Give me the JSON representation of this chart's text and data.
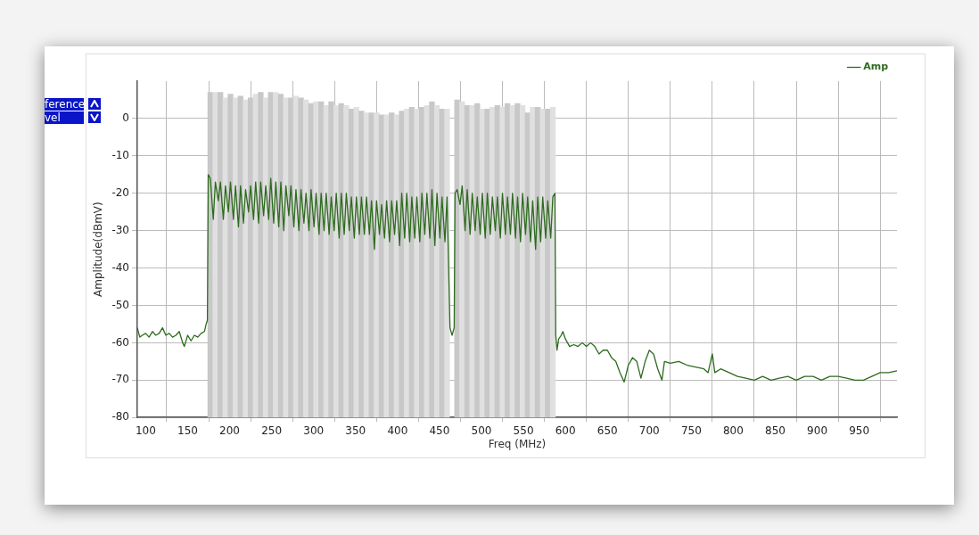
{
  "chart_data": {
    "type": "line",
    "xlabel": "Freq (MHz)",
    "ylabel": "Amplitude(dBmV)",
    "xlim": [
      90,
      995
    ],
    "xticks": [
      100,
      150,
      200,
      250,
      300,
      350,
      400,
      450,
      500,
      550,
      600,
      650,
      700,
      750,
      800,
      850,
      900,
      950
    ],
    "ylim": [
      -80,
      10
    ],
    "yticks": [
      -80,
      -70,
      -60,
      -50,
      -40,
      -30,
      -20,
      -10,
      0
    ],
    "grid": true,
    "legend": "top right",
    "marker": "none",
    "line_style": "solid",
    "annotations": [
      "ference",
      "vel"
    ],
    "series": [
      {
        "type": "bar",
        "x": [
          177,
          183,
          189,
          195,
          201,
          207,
          213,
          219,
          225,
          231,
          237,
          243,
          249,
          255,
          261,
          267,
          273,
          279,
          285,
          291,
          297,
          303,
          309,
          315,
          321,
          327,
          333,
          339,
          345,
          351,
          357,
          363,
          369,
          375,
          381,
          387,
          393,
          399,
          405,
          411,
          417,
          423,
          429,
          435,
          441,
          447,
          453,
          459,
          465,
          471,
          477,
          483,
          489,
          495,
          501,
          507,
          513,
          519,
          525,
          531,
          537,
          543,
          549,
          555,
          561,
          567,
          573,
          579,
          585
        ],
        "values": [
          87,
          87,
          87,
          85.5,
          86.5,
          85.5,
          86,
          85,
          85.5,
          86.5,
          87,
          85.5,
          87,
          87,
          86.5,
          85.5,
          85.5,
          86,
          85.5,
          85,
          84,
          84.5,
          84.5,
          83.5,
          84.5,
          83.5,
          84,
          83.5,
          82.5,
          83,
          82,
          81.5,
          81.5,
          81.5,
          81,
          81,
          81.5,
          81,
          82,
          82.5,
          83,
          82.5,
          83,
          83.5,
          84.5,
          83.5,
          82.5,
          82.5,
          null,
          85,
          84.5,
          83.5,
          83.5,
          84,
          82.5,
          82.5,
          83,
          83.5,
          83,
          84,
          83.5,
          84,
          83.5,
          81.5,
          83,
          83,
          82.5,
          82.5,
          83
        ],
        "base": [
          -80,
          -80,
          -80,
          -80,
          -80,
          -80,
          -80,
          -80,
          -80,
          -80,
          -80,
          -80,
          -80,
          -80,
          -80,
          -80,
          -80,
          -80,
          -80,
          -80,
          -80,
          -80,
          -80,
          -80,
          -80,
          -80,
          -80,
          -80,
          -80,
          -80,
          -80,
          -80,
          -80,
          -80,
          -80,
          -80,
          -80,
          -80,
          -80,
          -80,
          -80,
          -80,
          -80,
          -80,
          -80,
          -80,
          -80,
          -80,
          null,
          -80,
          -80,
          -80,
          -80,
          -80,
          -80,
          -80,
          -80,
          -80,
          -80,
          -80,
          -80,
          -80,
          -80,
          -80,
          -80,
          -80,
          -80,
          -80,
          -80
        ],
        "colors": [
          "#c8c8c8",
          "#e0e0e0",
          "#c8c8c8",
          "#e0e0e0",
          "#c8c8c8",
          "#e0e0e0",
          "#c8c8c8",
          "#e0e0e0",
          "#c8c8c8",
          "#e0e0e0",
          "#c8c8c8",
          "#e0e0e0",
          "#c8c8c8",
          "#e0e0e0",
          "#c8c8c8",
          "#e0e0e0",
          "#c8c8c8",
          "#e0e0e0",
          "#c8c8c8",
          "#e0e0e0",
          "#c8c8c8",
          "#e0e0e0",
          "#c8c8c8",
          "#e0e0e0",
          "#c8c8c8",
          "#e0e0e0",
          "#c8c8c8",
          "#e0e0e0",
          "#c8c8c8",
          "#e0e0e0",
          "#c8c8c8",
          "#e0e0e0",
          "#c8c8c8",
          "#e0e0e0",
          "#c8c8c8",
          "#e0e0e0",
          "#c8c8c8",
          "#e0e0e0",
          "#c8c8c8",
          "#e0e0e0",
          "#c8c8c8",
          "#e0e0e0",
          "#c8c8c8",
          "#e0e0e0",
          "#c8c8c8",
          "#e0e0e0",
          "#c8c8c8",
          "#e0e0e0",
          "#e0e0e0",
          "#c8c8c8",
          "#e0e0e0",
          "#c8c8c8",
          "#e0e0e0",
          "#c8c8c8",
          "#e0e0e0",
          "#c8c8c8",
          "#e0e0e0",
          "#c8c8c8",
          "#e0e0e0",
          "#c8c8c8",
          "#e0e0e0",
          "#c8c8c8",
          "#e0e0e0",
          "#c8c8c8",
          "#e0e0e0",
          "#c8c8c8",
          "#e0e0e0",
          "#c8c8c8",
          "#e0e0e0"
        ]
      },
      {
        "name": "Amp",
        "color": "#2e6b1f",
        "x": [
          90,
          93,
          96,
          100,
          104,
          108,
          112,
          116,
          120,
          124,
          128,
          132,
          136,
          140,
          144,
          146,
          150,
          154,
          158,
          162,
          166,
          170,
          172,
          173.5,
          174.5,
          177,
          180.5,
          183,
          186.5,
          189,
          192.5,
          195,
          198.5,
          201,
          204.5,
          207,
          210.5,
          213,
          216.5,
          219,
          222.5,
          225,
          228.5,
          231,
          234.5,
          237,
          240.5,
          243,
          246.5,
          249,
          252.5,
          255,
          258.5,
          261,
          264.5,
          267,
          270.5,
          273,
          276.5,
          279,
          282.5,
          285,
          288.5,
          291,
          294.5,
          297,
          300.5,
          303,
          306.5,
          309,
          312.5,
          315,
          318.5,
          321,
          324.5,
          327,
          330.5,
          333,
          336.5,
          339,
          342.5,
          345,
          348.5,
          351,
          354.5,
          357,
          360.5,
          363,
          366.5,
          369,
          372.5,
          375,
          378.5,
          381,
          384.5,
          387,
          390.5,
          393,
          396.5,
          399,
          402.5,
          405,
          408.5,
          411,
          414.5,
          417,
          420.5,
          423,
          426.5,
          429,
          432.5,
          435,
          438.5,
          441,
          444.5,
          447,
          450.5,
          453,
          456.5,
          459,
          462.5,
          465,
          467.5,
          468.5,
          471,
          474.5,
          477,
          480.5,
          483,
          486.5,
          489,
          492.5,
          495,
          498.5,
          501,
          504.5,
          507,
          510.5,
          513,
          516.5,
          519,
          522.5,
          525,
          528.5,
          531,
          534.5,
          537,
          540.5,
          543,
          546.5,
          549,
          552.5,
          555,
          558.5,
          561,
          564.5,
          567,
          570.5,
          573,
          576.5,
          579,
          582.5,
          585,
          587.5,
          588.5,
          590,
          592,
          595,
          597,
          600,
          605,
          610,
          615,
          620,
          625,
          630,
          635,
          640,
          645,
          650,
          655,
          660,
          665,
          670,
          675,
          680,
          685,
          690,
          695,
          700,
          705,
          710,
          715,
          718,
          725,
          735,
          745,
          755,
          765,
          770,
          775,
          778,
          785,
          795,
          805,
          815,
          825,
          835,
          845,
          855,
          865,
          875,
          885,
          895,
          905,
          915,
          925,
          935,
          945,
          955,
          965,
          975,
          985,
          995
        ],
        "values": [
          -56,
          -58.5,
          -58,
          -57.5,
          -58.5,
          -57,
          -58,
          -57.5,
          -56,
          -58,
          -57.5,
          -58.5,
          -58,
          -57,
          -60,
          -61,
          -58,
          -59.5,
          -58,
          -58.5,
          -57.5,
          -57,
          -55,
          -54,
          -15,
          -16,
          -27,
          -17,
          -22,
          -17,
          -27,
          -18,
          -25,
          -17,
          -27,
          -18,
          -29,
          -18,
          -28,
          -19,
          -25,
          -18,
          -27,
          -17,
          -28,
          -17,
          -26,
          -18,
          -27,
          -16,
          -28,
          -17,
          -29,
          -17,
          -30,
          -18,
          -26,
          -18,
          -29,
          -19,
          -30,
          -19,
          -28,
          -20,
          -30,
          -19,
          -29,
          -20,
          -31,
          -20,
          -30,
          -20,
          -31,
          -21,
          -30,
          -20,
          -32,
          -20,
          -31,
          -20,
          -30,
          -21,
          -32,
          -21,
          -31,
          -21,
          -31,
          -21,
          -31,
          -22,
          -35,
          -22,
          -31,
          -23,
          -32,
          -22,
          -33,
          -22,
          -31,
          -22,
          -34,
          -20,
          -32,
          -20,
          -33,
          -21,
          -32,
          -21,
          -33,
          -20,
          -31,
          -20,
          -32,
          -19,
          -34,
          -20,
          -32,
          -21,
          -33,
          -21,
          -56,
          -58,
          -56,
          -20,
          -19,
          -23,
          -18,
          -30,
          -19,
          -31,
          -20,
          -30,
          -21,
          -31,
          -20,
          -32,
          -20,
          -31,
          -21,
          -30,
          -21,
          -32,
          -20,
          -31,
          -21,
          -31,
          -20,
          -32,
          -21,
          -33,
          -20,
          -31,
          -21,
          -33,
          -22,
          -35,
          -21,
          -33,
          -21,
          -32,
          -22,
          -32,
          -21,
          -20,
          -58,
          -62,
          -59,
          -58,
          -57,
          -59,
          -61,
          -60.5,
          -61,
          -60,
          -61,
          -60,
          -61,
          -63,
          -62,
          -62,
          -64,
          -65,
          -68,
          -70.5,
          -66,
          -64,
          -65,
          -69.5,
          -65,
          -62,
          -63,
          -67,
          -70,
          -65,
          -65.5,
          -65,
          -66,
          -66.5,
          -67,
          -68,
          -63,
          -68,
          -67,
          -68,
          -69,
          -69.5,
          -70,
          -69,
          -70,
          -69.5,
          -69,
          -70,
          -69,
          -69,
          -70,
          -69,
          -69,
          -69.5,
          -70,
          -70,
          -69,
          -68,
          -68,
          -67.5
        ]
      }
    ]
  }
}
